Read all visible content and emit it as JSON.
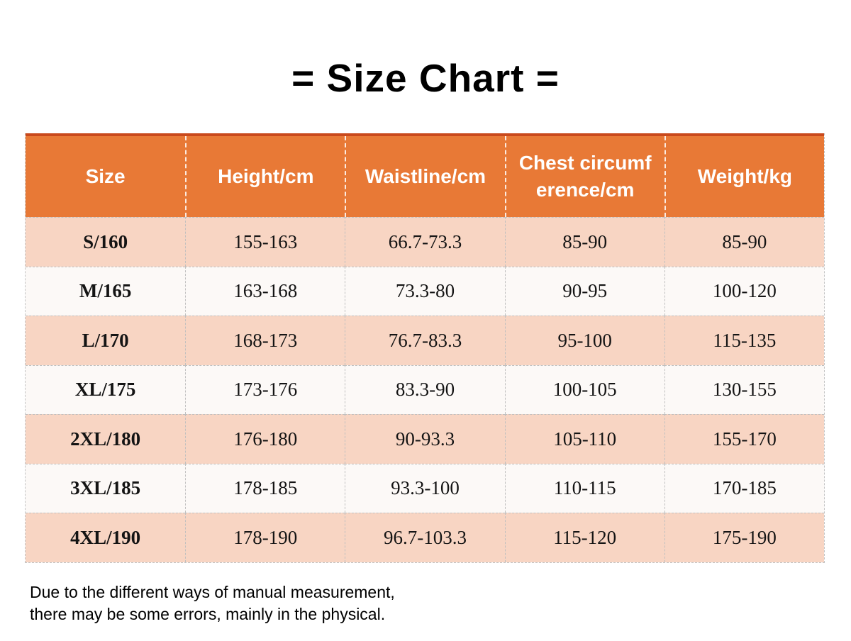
{
  "title": "= Size Chart =",
  "chart_data": {
    "type": "table",
    "columns": [
      "Size",
      "Height/cm",
      "Waistline/cm",
      "Chest circumf\nerence/cm",
      "Weight/kg"
    ],
    "rows": [
      [
        "S/160",
        "155-163",
        "66.7-73.3",
        "85-90",
        "85-90"
      ],
      [
        "M/165",
        "163-168",
        "73.3-80",
        "90-95",
        "100-120"
      ],
      [
        "L/170",
        "168-173",
        "76.7-83.3",
        "95-100",
        "115-135"
      ],
      [
        "XL/175",
        "173-176",
        "83.3-90",
        "100-105",
        "130-155"
      ],
      [
        "2XL/180",
        "176-180",
        "90-93.3",
        "105-110",
        "155-170"
      ],
      [
        "3XL/185",
        "178-185",
        "93.3-100",
        "110-115",
        "170-185"
      ],
      [
        "4XL/190",
        "178-190",
        "96.7-103.3",
        "115-120",
        "175-190"
      ]
    ]
  },
  "footnote": {
    "line1": "Due to the different ways of manual measurement,",
    "line2": "there may be some errors, mainly in the physical."
  },
  "colors": {
    "header_bg": "#e87936",
    "header_top_border": "#c9491c",
    "header_text": "#ffffff",
    "row_pink": "#f8d5c3",
    "row_white": "#fcf9f7",
    "dash_border": "#bfbfbf",
    "body_text": "#141414"
  }
}
